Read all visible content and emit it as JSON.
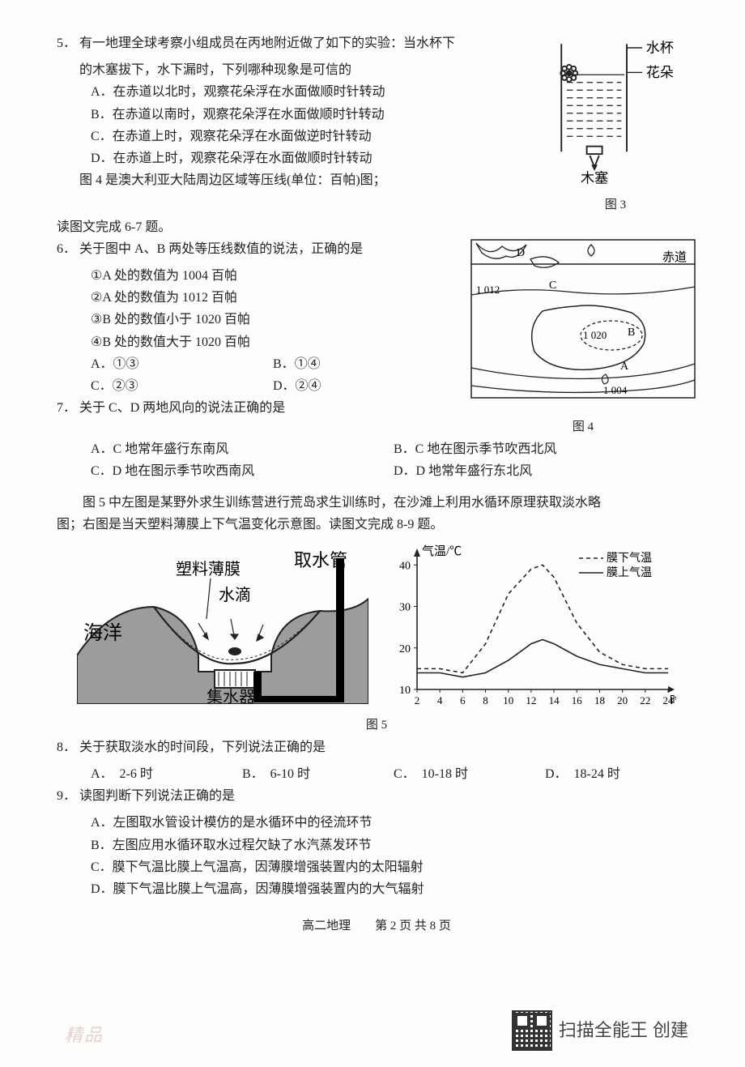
{
  "q5": {
    "num": "5．",
    "stem1": "有一地理全球考察小组成员在丙地附近做了如下的实验：当水杯下",
    "stem2": "的木塞拔下，水下漏时，下列哪种现象是可信的",
    "A": "A．在赤道以北时，观察花朵浮在水面做顺时针转动",
    "B": "B．在赤道以南时，观察花朵浮在水面做顺时针转动",
    "C": "C．在赤道上时，观察花朵浮在水面做逆时针转动",
    "D": "D．在赤道上时，观察花朵浮在水面做顺时针转动",
    "post": "图 4 是澳大利亚大陆周边区域等压线(单位：百帕)图；",
    "bridge": "读图文完成 6-7 题。"
  },
  "fig3": {
    "cup": "水杯",
    "flower": "花朵",
    "plug": "木塞",
    "caption": "图 3"
  },
  "q6": {
    "num": "6．",
    "stem": "关于图中 A、B 两处等压线数值的说法，正确的是",
    "s1": "①A 处的数值为 1004 百帕",
    "s2": "②A 处的数值为 1012 百帕",
    "s3": "③B 处的数值小于 1020 百帕",
    "s4": "④B 处的数值大于 1020 百帕",
    "A": "A．①③",
    "B": "B．①④",
    "C": "C．②③",
    "D": "D．②④"
  },
  "fig4": {
    "caption": "图 4",
    "equator": "赤道",
    "labels": {
      "A": "A",
      "B": "B",
      "C": "C",
      "D": "D",
      "l1004": "1 004",
      "l1012": "1 012",
      "l1020": "1 020"
    }
  },
  "q7": {
    "num": "7．",
    "stem": "关于 C、D 两地风向的说法正确的是",
    "A": "A．C 地常年盛行东南风",
    "B": "B．C 地在图示季节吹西北风",
    "C": "C．D 地在图示季节吹西南风",
    "D": "D．D 地常年盛行东北风"
  },
  "preFig5": {
    "line1": "图 5 中左图是某野外求生训练营进行荒岛求生训练时，在沙滩上利用水循环原理获取淡水略",
    "line2": "图；右图是当天塑料薄膜上下气温变化示意图。读图文完成 8-9 题。"
  },
  "fig5": {
    "caption": "图 5",
    "left": {
      "film": "塑料薄膜",
      "drop": "水滴",
      "pipe": "取水管",
      "ocean": "海洋",
      "collector": "集水器"
    },
    "right": {
      "ylabel": "气温/℃",
      "legend_below": "膜下气温",
      "legend_above": "膜上气温",
      "xunit": "时",
      "yticks": [
        "10",
        "20",
        "30",
        "40"
      ],
      "xticks": [
        "2",
        "4",
        "6",
        "8",
        "10",
        "12",
        "14",
        "16",
        "18",
        "20",
        "22",
        "24"
      ],
      "ylim": [
        10,
        42
      ],
      "below_series": [
        [
          2,
          15
        ],
        [
          4,
          15
        ],
        [
          6,
          14
        ],
        [
          8,
          21
        ],
        [
          10,
          33
        ],
        [
          12,
          39
        ],
        [
          13,
          40
        ],
        [
          14,
          37
        ],
        [
          16,
          26
        ],
        [
          18,
          19
        ],
        [
          20,
          16
        ],
        [
          22,
          15
        ],
        [
          24,
          15
        ]
      ],
      "above_series": [
        [
          2,
          14
        ],
        [
          4,
          14
        ],
        [
          6,
          13
        ],
        [
          8,
          14
        ],
        [
          10,
          17
        ],
        [
          12,
          21
        ],
        [
          13,
          22
        ],
        [
          14,
          21
        ],
        [
          16,
          18
        ],
        [
          18,
          16
        ],
        [
          20,
          15
        ],
        [
          22,
          14
        ],
        [
          24,
          14
        ]
      ],
      "colors": {
        "below": "#222",
        "above": "#222",
        "axis": "#222",
        "bg": "#ffffff"
      },
      "below_dash": "5,4",
      "line_width": 1.6
    }
  },
  "q8": {
    "num": "8．",
    "stem": "关于获取淡水的时间段，下列说法正确的是",
    "A": "A．　2-6 时",
    "B": "B．　6-10 时",
    "C": "C．　10-18 时",
    "D": "D．　18-24 时"
  },
  "q9": {
    "num": "9．",
    "stem": "读图判断下列说法正确的是",
    "A": "A．左图取水管设计模仿的是水循环中的径流环节",
    "B": "B．左图应用水循环取水过程欠缺了水汽蒸发环节",
    "C": "C．膜下气温比膜上气温高，因薄膜增强装置内的太阳辐射",
    "D": "D．膜下气温比膜上气温高，因薄膜增强装置内的大气辐射"
  },
  "footer": "高二地理　　第 2 页  共 8 页",
  "watermark": "精品",
  "appCredit": "扫描全能王  创建"
}
